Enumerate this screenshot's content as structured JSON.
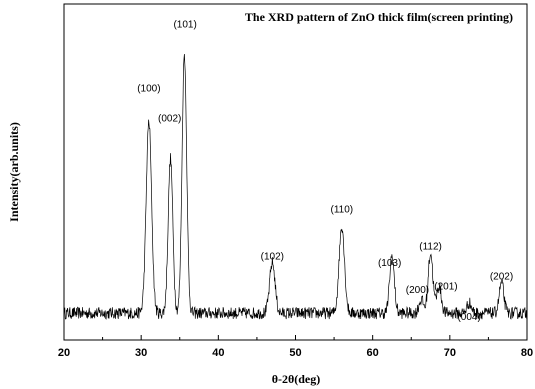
{
  "chart_data": {
    "type": "line",
    "title": "The XRD pattern of  ZnO thick film(screen printing)",
    "xlabel": "θ-2θ(deg)",
    "ylabel": "Intensity(arb.units)",
    "xlim": [
      20,
      80
    ],
    "ylim": [
      0,
      1
    ],
    "x_ticks": [
      "20",
      "30",
      "40",
      "50",
      "60",
      "70",
      "80"
    ],
    "y_ticks": [],
    "grid": false,
    "legend": "none",
    "line_color": "#000000",
    "baseline": 0.08,
    "noise": 0.018,
    "series": [
      {
        "peaks": [
          {
            "x": 31.0,
            "height": 0.57,
            "width": 0.35
          },
          {
            "x": 33.8,
            "height": 0.46,
            "width": 0.3
          },
          {
            "x": 35.6,
            "height": 0.77,
            "width": 0.3
          },
          {
            "x": 47.0,
            "height": 0.15,
            "width": 0.35
          },
          {
            "x": 56.0,
            "height": 0.26,
            "width": 0.35
          },
          {
            "x": 62.5,
            "height": 0.17,
            "width": 0.3
          },
          {
            "x": 66.3,
            "height": 0.04,
            "width": 0.3
          },
          {
            "x": 67.5,
            "height": 0.18,
            "width": 0.3
          },
          {
            "x": 68.6,
            "height": 0.08,
            "width": 0.3
          },
          {
            "x": 72.5,
            "height": 0.03,
            "width": 0.3
          },
          {
            "x": 76.7,
            "height": 0.09,
            "width": 0.3
          }
        ]
      }
    ],
    "annotations": [
      {
        "text": "(100)",
        "x": 31.0,
        "y": 0.74
      },
      {
        "text": "(002)",
        "x": 33.7,
        "y": 0.65
      },
      {
        "text": "(101)",
        "x": 35.7,
        "y": 0.93
      },
      {
        "text": "(102)",
        "x": 47.0,
        "y": 0.24
      },
      {
        "text": "(110)",
        "x": 56.0,
        "y": 0.38
      },
      {
        "text": "(103)",
        "x": 62.2,
        "y": 0.22
      },
      {
        "text": "(200)",
        "x": 65.8,
        "y": 0.14
      },
      {
        "text": "(112)",
        "x": 67.5,
        "y": 0.27
      },
      {
        "text": "(201)",
        "x": 69.5,
        "y": 0.15
      },
      {
        "text": "(004)",
        "x": 72.5,
        "y": 0.06
      },
      {
        "text": "(202)",
        "x": 76.7,
        "y": 0.18
      }
    ]
  }
}
